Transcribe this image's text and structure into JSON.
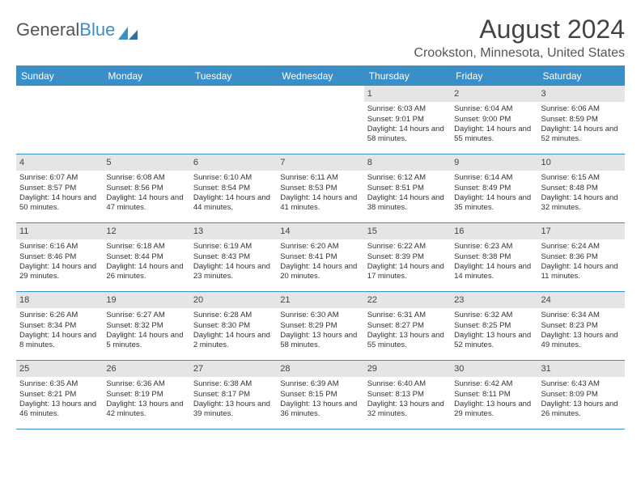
{
  "logo": {
    "text1": "General",
    "text2": "Blue"
  },
  "title": "August 2024",
  "location": "Crookston, Minnesota, United States",
  "colors": {
    "accent": "#3a8fc8",
    "grayBand": "#e5e5e5",
    "text": "#333333"
  },
  "dayNames": [
    "Sunday",
    "Monday",
    "Tuesday",
    "Wednesday",
    "Thursday",
    "Friday",
    "Saturday"
  ],
  "weeks": [
    [
      null,
      null,
      null,
      null,
      {
        "d": "1",
        "sr": "6:03 AM",
        "ss": "9:01 PM",
        "dl": "14 hours and 58 minutes."
      },
      {
        "d": "2",
        "sr": "6:04 AM",
        "ss": "9:00 PM",
        "dl": "14 hours and 55 minutes."
      },
      {
        "d": "3",
        "sr": "6:06 AM",
        "ss": "8:59 PM",
        "dl": "14 hours and 52 minutes."
      }
    ],
    [
      {
        "d": "4",
        "sr": "6:07 AM",
        "ss": "8:57 PM",
        "dl": "14 hours and 50 minutes."
      },
      {
        "d": "5",
        "sr": "6:08 AM",
        "ss": "8:56 PM",
        "dl": "14 hours and 47 minutes."
      },
      {
        "d": "6",
        "sr": "6:10 AM",
        "ss": "8:54 PM",
        "dl": "14 hours and 44 minutes."
      },
      {
        "d": "7",
        "sr": "6:11 AM",
        "ss": "8:53 PM",
        "dl": "14 hours and 41 minutes."
      },
      {
        "d": "8",
        "sr": "6:12 AM",
        "ss": "8:51 PM",
        "dl": "14 hours and 38 minutes."
      },
      {
        "d": "9",
        "sr": "6:14 AM",
        "ss": "8:49 PM",
        "dl": "14 hours and 35 minutes."
      },
      {
        "d": "10",
        "sr": "6:15 AM",
        "ss": "8:48 PM",
        "dl": "14 hours and 32 minutes."
      }
    ],
    [
      {
        "d": "11",
        "sr": "6:16 AM",
        "ss": "8:46 PM",
        "dl": "14 hours and 29 minutes."
      },
      {
        "d": "12",
        "sr": "6:18 AM",
        "ss": "8:44 PM",
        "dl": "14 hours and 26 minutes."
      },
      {
        "d": "13",
        "sr": "6:19 AM",
        "ss": "8:43 PM",
        "dl": "14 hours and 23 minutes."
      },
      {
        "d": "14",
        "sr": "6:20 AM",
        "ss": "8:41 PM",
        "dl": "14 hours and 20 minutes."
      },
      {
        "d": "15",
        "sr": "6:22 AM",
        "ss": "8:39 PM",
        "dl": "14 hours and 17 minutes."
      },
      {
        "d": "16",
        "sr": "6:23 AM",
        "ss": "8:38 PM",
        "dl": "14 hours and 14 minutes."
      },
      {
        "d": "17",
        "sr": "6:24 AM",
        "ss": "8:36 PM",
        "dl": "14 hours and 11 minutes."
      }
    ],
    [
      {
        "d": "18",
        "sr": "6:26 AM",
        "ss": "8:34 PM",
        "dl": "14 hours and 8 minutes."
      },
      {
        "d": "19",
        "sr": "6:27 AM",
        "ss": "8:32 PM",
        "dl": "14 hours and 5 minutes."
      },
      {
        "d": "20",
        "sr": "6:28 AM",
        "ss": "8:30 PM",
        "dl": "14 hours and 2 minutes."
      },
      {
        "d": "21",
        "sr": "6:30 AM",
        "ss": "8:29 PM",
        "dl": "13 hours and 58 minutes."
      },
      {
        "d": "22",
        "sr": "6:31 AM",
        "ss": "8:27 PM",
        "dl": "13 hours and 55 minutes."
      },
      {
        "d": "23",
        "sr": "6:32 AM",
        "ss": "8:25 PM",
        "dl": "13 hours and 52 minutes."
      },
      {
        "d": "24",
        "sr": "6:34 AM",
        "ss": "8:23 PM",
        "dl": "13 hours and 49 minutes."
      }
    ],
    [
      {
        "d": "25",
        "sr": "6:35 AM",
        "ss": "8:21 PM",
        "dl": "13 hours and 46 minutes."
      },
      {
        "d": "26",
        "sr": "6:36 AM",
        "ss": "8:19 PM",
        "dl": "13 hours and 42 minutes."
      },
      {
        "d": "27",
        "sr": "6:38 AM",
        "ss": "8:17 PM",
        "dl": "13 hours and 39 minutes."
      },
      {
        "d": "28",
        "sr": "6:39 AM",
        "ss": "8:15 PM",
        "dl": "13 hours and 36 minutes."
      },
      {
        "d": "29",
        "sr": "6:40 AM",
        "ss": "8:13 PM",
        "dl": "13 hours and 32 minutes."
      },
      {
        "d": "30",
        "sr": "6:42 AM",
        "ss": "8:11 PM",
        "dl": "13 hours and 29 minutes."
      },
      {
        "d": "31",
        "sr": "6:43 AM",
        "ss": "8:09 PM",
        "dl": "13 hours and 26 minutes."
      }
    ]
  ],
  "labels": {
    "sunrise": "Sunrise: ",
    "sunset": "Sunset: ",
    "daylight": "Daylight: "
  }
}
